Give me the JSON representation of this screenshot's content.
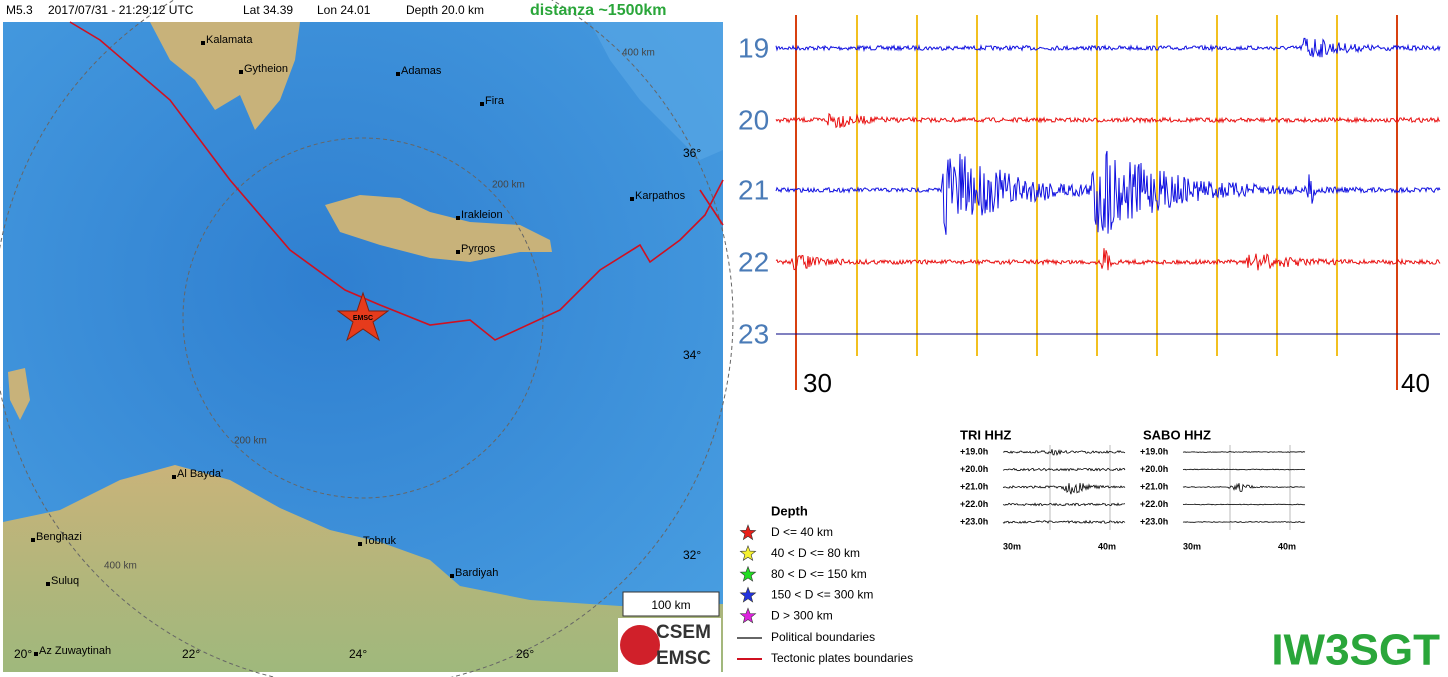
{
  "header": {
    "magnitude": "M5.3",
    "datetime": "2017/07/31 - 21:29:12 UTC",
    "lat": "Lat 34.39",
    "lon": "Lon 24.01",
    "depth": "Depth 20.0 km",
    "distance": "distanza ~1500km"
  },
  "map": {
    "places": [
      "Kalamata",
      "Gytheion",
      "Adamas",
      "Fira",
      "Karpathos",
      "Irakleion",
      "Pyrgos",
      "Al Bayda'",
      "Benghazi",
      "Tobruk",
      "Suluq",
      "Bardiyah",
      "Az Zuwaytinah"
    ],
    "ring_labels": [
      "400 km",
      "200 km",
      "200 km",
      "400 km"
    ],
    "lat_labels": [
      "36°",
      "34°",
      "32°"
    ],
    "lon_labels": [
      "20°",
      "22°",
      "24°",
      "26°"
    ],
    "scale": "100 km",
    "epicenter": "EMSC",
    "logo": [
      "CSEM",
      "EMSC"
    ]
  },
  "legend": {
    "title": "Depth",
    "items": [
      "D <= 40 km",
      "40 < D <= 80 km",
      "80 < D <= 150 km",
      "150 < D <= 300 km",
      "D > 300 km"
    ],
    "lines": [
      "Political boundaries",
      "Tectonic plates boundaries"
    ]
  },
  "seismogram": {
    "hours": [
      "19",
      "20",
      "21",
      "22",
      "23"
    ],
    "minutes": [
      "30",
      "40"
    ]
  },
  "thumbnails": [
    {
      "title": "TRI HHZ",
      "hours": [
        "+19.0h",
        "+20.0h",
        "+21.0h",
        "+22.0h",
        "+23.0h"
      ],
      "minutes": [
        "30m",
        "40m"
      ]
    },
    {
      "title": "SABO HHZ",
      "hours": [
        "+19.0h",
        "+20.0h",
        "+21.0h",
        "+22.0h",
        "+23.0h"
      ],
      "minutes": [
        "30m",
        "40m"
      ]
    }
  ],
  "callsign": "IW3SGT"
}
